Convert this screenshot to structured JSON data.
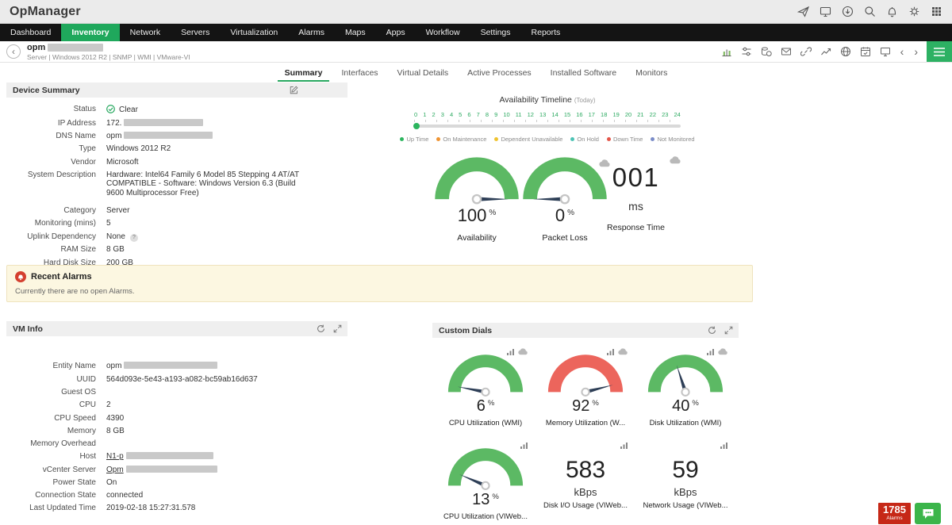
{
  "app": {
    "title": "OpManager"
  },
  "glyphs": {
    "back": "‹",
    "prev": "‹",
    "next": "›",
    "help": "?"
  },
  "colors": {
    "accent_green": "#1fa85c",
    "gauge_green": "#5cb964",
    "gauge_red": "#ec655c",
    "needle": "#2e3f57",
    "alarm_red": "#c62817",
    "chat_green": "#3bb54a"
  },
  "nav": {
    "items": [
      {
        "label": "Dashboard",
        "active": false
      },
      {
        "label": "Inventory",
        "active": true
      },
      {
        "label": "Network",
        "active": false
      },
      {
        "label": "Servers",
        "active": false
      },
      {
        "label": "Virtualization",
        "active": false
      },
      {
        "label": "Alarms",
        "active": false
      },
      {
        "label": "Maps",
        "active": false
      },
      {
        "label": "Apps",
        "active": false
      },
      {
        "label": "Workflow",
        "active": false
      },
      {
        "label": "Settings",
        "active": false
      },
      {
        "label": "Reports",
        "active": false
      }
    ]
  },
  "device": {
    "name": "opm",
    "meta": "Server | Windows 2012 R2 | SNMP | WMI | VMware-VI"
  },
  "tabs": [
    {
      "label": "Summary",
      "active": true
    },
    {
      "label": "Interfaces",
      "active": false
    },
    {
      "label": "Virtual Details",
      "active": false
    },
    {
      "label": "Active Processes",
      "active": false
    },
    {
      "label": "Installed Software",
      "active": false
    },
    {
      "label": "Monitors",
      "active": false
    }
  ],
  "device_summary": {
    "title": "Device Summary",
    "rows": [
      {
        "label": "Status",
        "value": "Clear"
      },
      {
        "label": "IP Address",
        "value": "172."
      },
      {
        "label": "DNS Name",
        "value": "opm"
      },
      {
        "label": "Type",
        "value": "Windows 2012 R2"
      },
      {
        "label": "Vendor",
        "value": "Microsoft"
      },
      {
        "label": "System Description",
        "value": "Hardware: Intel64 Family 6 Model 85 Stepping 4 AT/AT COMPATIBLE - Software: Windows Version 6.3 (Build 9600 Multiprocessor Free)"
      },
      {
        "label": "Category",
        "value": "Server"
      },
      {
        "label": "Monitoring (mins)",
        "value": "5"
      },
      {
        "label": "Uplink Dependency",
        "value": "None"
      },
      {
        "label": "RAM Size",
        "value": "8 GB"
      },
      {
        "label": "Hard Disk Size",
        "value": "200 GB"
      }
    ]
  },
  "timeline": {
    "title": "Availability Timeline",
    "subtitle": "(Today)",
    "ticks": [
      "0",
      "1",
      "2",
      "3",
      "4",
      "5",
      "6",
      "7",
      "8",
      "9",
      "10",
      "11",
      "12",
      "13",
      "14",
      "15",
      "16",
      "17",
      "18",
      "19",
      "20",
      "21",
      "22",
      "23",
      "24"
    ],
    "legend": [
      {
        "label": "Up Time",
        "color": "#2cb55e"
      },
      {
        "label": "On Maintenance",
        "color": "#ef9432"
      },
      {
        "label": "Dependent Unavailable",
        "color": "#efc32f"
      },
      {
        "label": "On Hold",
        "color": "#4dc3b5"
      },
      {
        "label": "Down Time",
        "color": "#e4564a"
      },
      {
        "label": "Not Monitored",
        "color": "#7a8cc8"
      }
    ],
    "marker_color": "#2cb55e"
  },
  "summary_metrics": {
    "gauges": [
      {
        "label": "Availability",
        "value": "100",
        "unit": "%",
        "percent": 100,
        "color": "#5cb964"
      },
      {
        "label": "Packet Loss",
        "value": "0",
        "unit": "%",
        "percent": 0,
        "color": "#5cb964"
      }
    ],
    "response_time": {
      "label": "Response Time",
      "value": "001",
      "unit": "ms"
    }
  },
  "recent_alarms": {
    "title": "Recent Alarms",
    "message": "Currently there are no open Alarms."
  },
  "vm_info": {
    "title": "VM Info",
    "rows": [
      {
        "label": "Entity Name",
        "value": "opm"
      },
      {
        "label": "UUID",
        "value": "564d093e-5e43-a193-a082-bc59ab16d637"
      },
      {
        "label": "Guest OS",
        "value": ""
      },
      {
        "label": "CPU",
        "value": "2"
      },
      {
        "label": "CPU Speed",
        "value": "4390"
      },
      {
        "label": "Memory",
        "value": "8 GB"
      },
      {
        "label": "Memory Overhead",
        "value": ""
      },
      {
        "label": "Host",
        "value": "N1-p"
      },
      {
        "label": "vCenter Server",
        "value": "Opm"
      },
      {
        "label": "Power State",
        "value": "On"
      },
      {
        "label": "Connection State",
        "value": "connected"
      },
      {
        "label": "Last Updated Time",
        "value": "2019-02-18 15:27:31.578"
      }
    ]
  },
  "custom_dials": {
    "title": "Custom Dials",
    "dials": [
      {
        "label": "CPU Utilization (WMI)",
        "value": "6",
        "unit": "%",
        "percent": 6,
        "color": "#5cb964",
        "type": "gauge"
      },
      {
        "label": "Memory Utilization (W...",
        "value": "92",
        "unit": "%",
        "percent": 92,
        "color": "#ec655c",
        "type": "gauge"
      },
      {
        "label": "Disk Utilization (WMI)",
        "value": "40",
        "unit": "%",
        "percent": 40,
        "color": "#5cb964",
        "type": "gauge"
      },
      {
        "label": "CPU Utilization (VIWeb...",
        "value": "13",
        "unit": "%",
        "percent": 13,
        "color": "#5cb964",
        "type": "gauge"
      },
      {
        "label": "Disk I/O Usage (VIWeb...",
        "value": "583",
        "unit": "kBps",
        "type": "number"
      },
      {
        "label": "Network Usage (VIWeb...",
        "value": "59",
        "unit": "kBps",
        "type": "number"
      }
    ]
  },
  "footer": {
    "alarm_count": "1785",
    "alarm_label": "Alarms"
  }
}
